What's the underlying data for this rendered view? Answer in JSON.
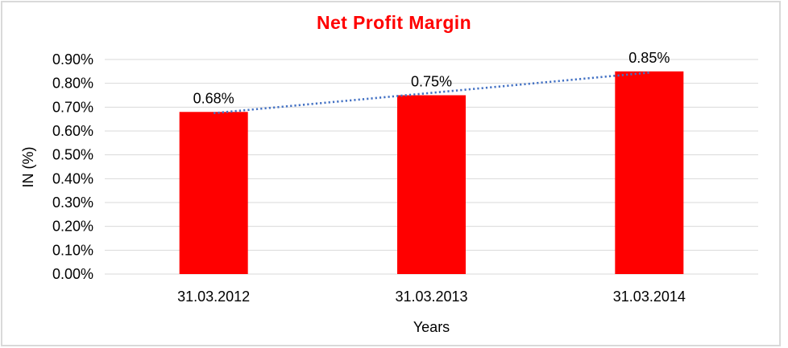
{
  "chart_data": {
    "type": "bar",
    "title": "Net Profit Margin",
    "categories": [
      "31.03.2012",
      "31.03.2013",
      "31.03.2014"
    ],
    "values": [
      0.68,
      0.75,
      0.85
    ],
    "data_labels": [
      "0.68%",
      "0.75%",
      "0.85%"
    ],
    "xlabel": "Years",
    "ylabel": "IN (%)",
    "ylim": [
      0,
      0.9
    ],
    "ytick_step": 0.1,
    "ytick_labels": [
      "0.00%",
      "0.10%",
      "0.20%",
      "0.30%",
      "0.40%",
      "0.50%",
      "0.60%",
      "0.70%",
      "0.80%",
      "0.90%"
    ],
    "grid": true,
    "legend": false,
    "trendline": {
      "type": "linear",
      "style": "dotted",
      "from_value": 0.675,
      "to_value": 0.845
    },
    "colors": {
      "bar": "#FF0000",
      "title": "#FF0000",
      "trendline": "#4472C4",
      "gridline": "#D9D9D9",
      "text": "#000000"
    }
  }
}
